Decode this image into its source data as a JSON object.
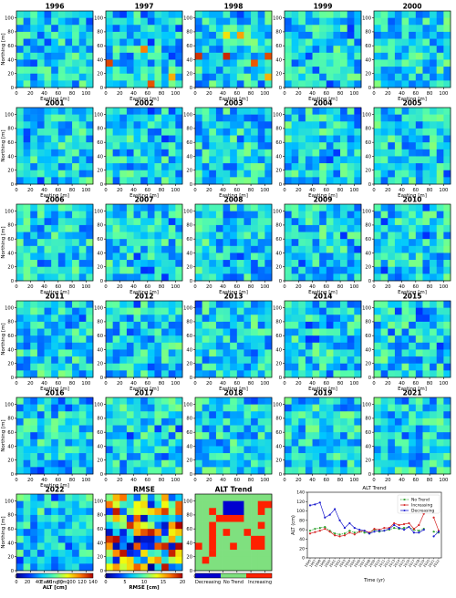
{
  "figure": {
    "panel_years": [
      "1996",
      "1997",
      "1998",
      "1999",
      "2000",
      "2001",
      "2002",
      "2003",
      "2004",
      "2005",
      "2006",
      "2007",
      "2008",
      "2009",
      "2010",
      "2011",
      "2012",
      "2013",
      "2014",
      "2015",
      "2016",
      "2017",
      "2018",
      "2019",
      "2021",
      "2022"
    ],
    "rmse_title": "RMSE",
    "trend_title": "ALT Trend",
    "x_axis_label": "Easting [m]",
    "y_axis_label": "Northing [m]",
    "map_ticks": [
      0,
      20,
      40,
      60,
      80,
      100
    ],
    "colors": {
      "alt_cmap": [
        "#00008f",
        "#0030ff",
        "#00c8ff",
        "#5affa5",
        "#f0ff0f",
        "#ff7800",
        "#af0000"
      ],
      "rmse_cmap": [
        "#00008f",
        "#0030ff",
        "#00c8ff",
        "#5affa5",
        "#f0ff0f",
        "#ff7800",
        "#af0000"
      ],
      "trend_no": "#7fe07f",
      "trend_inc": "#ff2000",
      "trend_dec": "#0000d0",
      "series_no": "#2ca02c",
      "series_inc": "#d62728",
      "series_dec": "#1f1fcf"
    }
  },
  "colorbars": {
    "alt": {
      "label": "ALT [cm]",
      "ticks": [
        "0",
        "20",
        "40",
        "60",
        "80",
        "100",
        "120",
        "140"
      ],
      "range": [
        0,
        140
      ]
    },
    "rmse": {
      "label": "RMSE [cm]",
      "ticks": [
        "0",
        "5",
        "10",
        "15",
        "20"
      ],
      "range": [
        0,
        20
      ]
    },
    "trend": {
      "labels": [
        "Decreasing",
        "No Trend",
        "Increasing"
      ]
    }
  },
  "chart_data": {
    "type": "line",
    "title": "ALT Trend",
    "xlabel": "Time (yr)",
    "ylabel": "ALT (cm)",
    "ylim": [
      0,
      140
    ],
    "yticks": [
      0,
      20,
      40,
      60,
      80,
      100,
      120,
      140
    ],
    "x": [
      "1996",
      "1997",
      "1998",
      "1999",
      "2000",
      "2001",
      "2002",
      "2003",
      "2004",
      "2005",
      "2006",
      "2007",
      "2008",
      "2009",
      "2010",
      "2011",
      "2012",
      "2013",
      "2014",
      "2015",
      "2016",
      "2017",
      "2018",
      "2019",
      "2020",
      "2021",
      "2022"
    ],
    "legend_position": "top-right",
    "series": [
      {
        "name": "No Trend",
        "values": [
          58,
          62,
          64,
          66,
          58,
          52,
          50,
          52,
          58,
          54,
          56,
          54,
          52,
          60,
          56,
          58,
          60,
          64,
          62,
          64,
          66,
          60,
          58,
          62,
          null,
          56,
          54
        ]
      },
      {
        "name": "Increasing",
        "values": [
          52,
          55,
          58,
          62,
          56,
          48,
          46,
          48,
          54,
          50,
          56,
          58,
          54,
          62,
          60,
          64,
          64,
          74,
          70,
          72,
          74,
          62,
          70,
          94,
          null,
          86,
          58
        ]
      },
      {
        "name": "Decreasing",
        "values": [
          112,
          114,
          118,
          86,
          92,
          104,
          80,
          64,
          74,
          64,
          60,
          58,
          52,
          56,
          58,
          58,
          62,
          70,
          64,
          60,
          66,
          54,
          54,
          60,
          null,
          46,
          56
        ]
      }
    ]
  }
}
